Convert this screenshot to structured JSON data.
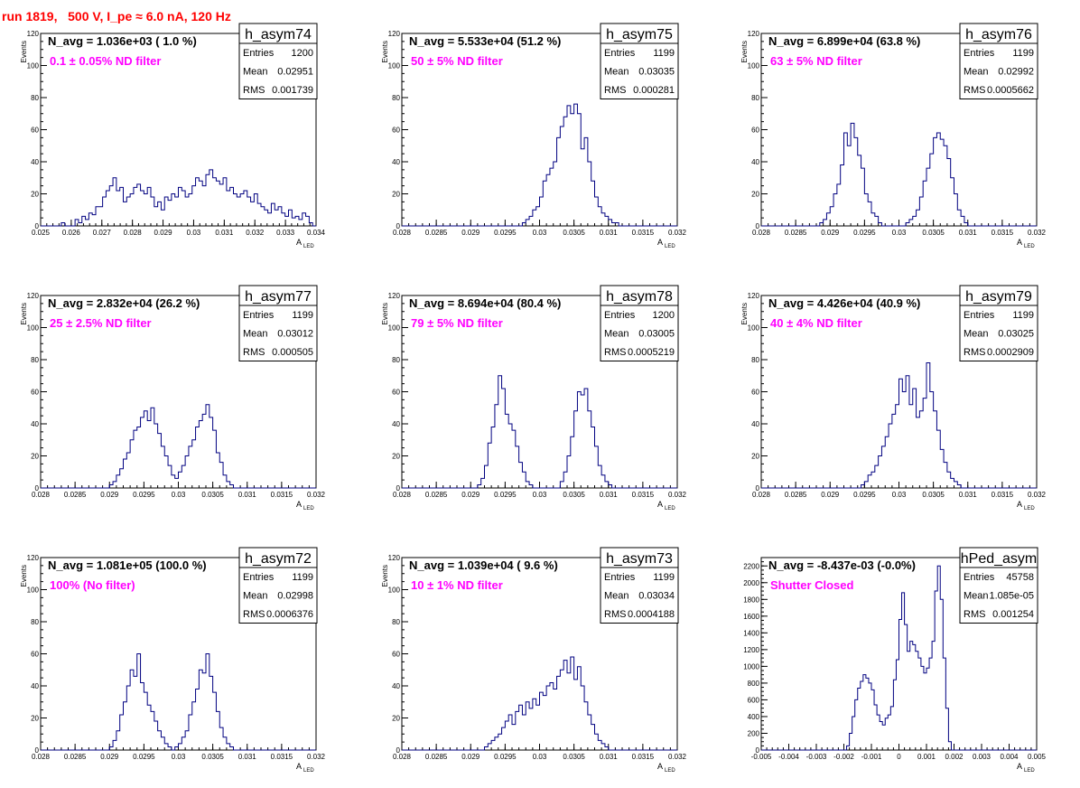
{
  "page": {
    "run_title": "run 1819,   500 V, I_pe ≈ 6.0 nA, 120 Hz"
  },
  "styles": {
    "hist_color": "#000080",
    "label_color": "#ff00ff",
    "title_color": "#ff0000",
    "frame_color": "#000000"
  },
  "chart_data": [
    {
      "type": "histogram",
      "name": "h_asym74",
      "navg": "N_avg = 1.036e+03 ( 1.0 %)",
      "label": "0.1 ± 0.05% ND filter",
      "stats": [
        [
          "Entries",
          "1200"
        ],
        [
          "Mean",
          "0.02951"
        ],
        [
          "RMS",
          "0.001739"
        ]
      ],
      "xlabel": "A",
      "xlabel_sub": "LED",
      "ylabel": "Events",
      "xlim": [
        0.025,
        0.034
      ],
      "ylim": [
        0,
        120
      ],
      "xticks": [
        "0.025",
        "0.026",
        "0.027",
        "0.028",
        "0.029",
        "0.03",
        "0.031",
        "0.032",
        "0.033",
        "0.034"
      ],
      "yticks": [
        "0",
        "20",
        "40",
        "60",
        "80",
        "100",
        "120"
      ],
      "bins": 80,
      "values": [
        0,
        0,
        0,
        0,
        0,
        0,
        2,
        0,
        0,
        0,
        4,
        2,
        6,
        4,
        8,
        7,
        12,
        12,
        18,
        22,
        25,
        30,
        22,
        24,
        15,
        18,
        20,
        24,
        26,
        22,
        20,
        24,
        18,
        12,
        15,
        10,
        18,
        16,
        20,
        18,
        24,
        22,
        18,
        20,
        25,
        30,
        28,
        25,
        32,
        35,
        30,
        28,
        26,
        30,
        22,
        24,
        20,
        18,
        20,
        22,
        18,
        15,
        20,
        14,
        12,
        10,
        8,
        14,
        10,
        12,
        8,
        6,
        10,
        5,
        6,
        4,
        8,
        6,
        2,
        0
      ]
    },
    {
      "type": "histogram",
      "name": "h_asym75",
      "navg": "N_avg = 5.533e+04 (51.2 %)",
      "label": "50 ± 5% ND filter",
      "stats": [
        [
          "Entries",
          "1199"
        ],
        [
          "Mean",
          "0.03035"
        ],
        [
          "RMS",
          "0.000281"
        ]
      ],
      "xlabel": "A",
      "xlabel_sub": "LED",
      "ylabel": "Events",
      "xlim": [
        0.028,
        0.032
      ],
      "ylim": [
        0,
        120
      ],
      "xticks": [
        "0.028",
        "0.0285",
        "0.029",
        "0.0295",
        "0.03",
        "0.0305",
        "0.031",
        "0.0315",
        "0.032"
      ],
      "yticks": [
        "0",
        "20",
        "40",
        "60",
        "80",
        "100",
        "120"
      ],
      "bins": 80,
      "values": [
        0,
        0,
        0,
        0,
        0,
        0,
        0,
        0,
        0,
        0,
        0,
        0,
        0,
        0,
        0,
        0,
        0,
        0,
        0,
        0,
        0,
        0,
        0,
        0,
        0,
        0,
        0,
        0,
        0,
        0,
        0,
        0,
        0,
        0,
        0,
        2,
        4,
        6,
        10,
        12,
        18,
        28,
        32,
        36,
        40,
        55,
        62,
        68,
        75,
        70,
        76,
        70,
        48,
        55,
        40,
        28,
        18,
        12,
        8,
        6,
        4,
        2,
        2,
        0,
        0,
        0,
        0,
        0,
        0,
        0,
        0,
        0,
        0,
        0,
        0,
        0,
        0,
        0,
        0,
        0
      ]
    },
    {
      "type": "histogram",
      "name": "h_asym76",
      "navg": "N_avg = 6.899e+04 (63.8 %)",
      "label": "63 ± 5% ND filter",
      "stats": [
        [
          "Entries",
          "1199"
        ],
        [
          "Mean",
          "0.02992"
        ],
        [
          "RMS",
          "0.0005662"
        ]
      ],
      "xlabel": "A",
      "xlabel_sub": "LED",
      "ylabel": "Events",
      "xlim": [
        0.028,
        0.032
      ],
      "ylim": [
        0,
        120
      ],
      "xticks": [
        "0.028",
        "0.0285",
        "0.029",
        "0.0295",
        "0.03",
        "0.0305",
        "0.031",
        "0.0315",
        "0.032"
      ],
      "yticks": [
        "0",
        "20",
        "40",
        "60",
        "80",
        "100",
        "120"
      ],
      "bins": 80,
      "values": [
        0,
        0,
        0,
        0,
        0,
        0,
        0,
        0,
        0,
        0,
        0,
        0,
        0,
        0,
        0,
        0,
        0,
        2,
        4,
        8,
        12,
        20,
        26,
        38,
        58,
        50,
        64,
        55,
        44,
        36,
        20,
        15,
        8,
        6,
        2,
        0,
        0,
        0,
        0,
        0,
        0,
        0,
        2,
        4,
        6,
        10,
        18,
        28,
        36,
        45,
        55,
        58,
        54,
        50,
        42,
        30,
        20,
        10,
        6,
        2,
        0,
        0,
        0,
        0,
        0,
        0,
        0,
        0,
        0,
        0,
        0,
        0,
        0,
        0,
        0,
        0,
        0,
        0,
        0,
        0
      ]
    },
    {
      "type": "histogram",
      "name": "h_asym77",
      "navg": "N_avg = 2.832e+04 (26.2 %)",
      "label": "25 ± 2.5% ND filter",
      "stats": [
        [
          "Entries",
          "1199"
        ],
        [
          "Mean",
          "0.03012"
        ],
        [
          "RMS",
          "0.000505"
        ]
      ],
      "xlabel": "A",
      "xlabel_sub": "LED",
      "ylabel": "Events",
      "xlim": [
        0.028,
        0.032
      ],
      "ylim": [
        0,
        120
      ],
      "xticks": [
        "0.028",
        "0.0285",
        "0.029",
        "0.0295",
        "0.03",
        "0.0305",
        "0.031",
        "0.0315",
        "0.032"
      ],
      "yticks": [
        "0",
        "20",
        "40",
        "60",
        "80",
        "100",
        "120"
      ],
      "bins": 80,
      "values": [
        0,
        0,
        0,
        0,
        0,
        0,
        0,
        0,
        0,
        0,
        0,
        0,
        0,
        0,
        0,
        0,
        0,
        0,
        0,
        0,
        2,
        4,
        8,
        12,
        18,
        22,
        30,
        36,
        38,
        44,
        48,
        42,
        50,
        40,
        34,
        26,
        20,
        14,
        8,
        6,
        10,
        14,
        20,
        26,
        30,
        38,
        42,
        46,
        52,
        44,
        36,
        22,
        16,
        8,
        4,
        2,
        0,
        0,
        0,
        0,
        0,
        0,
        0,
        0,
        0,
        0,
        0,
        0,
        0,
        0,
        0,
        0,
        0,
        0,
        0,
        0,
        0,
        0,
        0,
        0
      ]
    },
    {
      "type": "histogram",
      "name": "h_asym78",
      "navg": "N_avg = 8.694e+04 (80.4 %)",
      "label": "79 ± 5% ND filter",
      "stats": [
        [
          "Entries",
          "1200"
        ],
        [
          "Mean",
          "0.03005"
        ],
        [
          "RMS",
          "0.0005219"
        ]
      ],
      "xlabel": "A",
      "xlabel_sub": "LED",
      "ylabel": "Events",
      "xlim": [
        0.028,
        0.032
      ],
      "ylim": [
        0,
        120
      ],
      "xticks": [
        "0.028",
        "0.0285",
        "0.029",
        "0.0295",
        "0.03",
        "0.0305",
        "0.031",
        "0.0315",
        "0.032"
      ],
      "yticks": [
        "0",
        "20",
        "40",
        "60",
        "80",
        "100",
        "120"
      ],
      "bins": 80,
      "values": [
        0,
        0,
        0,
        0,
        0,
        0,
        0,
        0,
        0,
        0,
        0,
        0,
        0,
        0,
        0,
        0,
        0,
        0,
        0,
        0,
        0,
        0,
        2,
        6,
        14,
        28,
        38,
        52,
        70,
        62,
        46,
        40,
        36,
        26,
        16,
        10,
        4,
        2,
        0,
        0,
        0,
        0,
        0,
        0,
        0,
        0,
        4,
        10,
        20,
        32,
        48,
        60,
        58,
        62,
        48,
        38,
        26,
        14,
        8,
        4,
        2,
        0,
        0,
        0,
        0,
        0,
        0,
        0,
        0,
        0,
        0,
        0,
        0,
        0,
        0,
        0,
        0,
        0,
        0,
        0
      ]
    },
    {
      "type": "histogram",
      "name": "h_asym79",
      "navg": "N_avg = 4.426e+04 (40.9 %)",
      "label": "40 ± 4% ND filter",
      "stats": [
        [
          "Entries",
          "1199"
        ],
        [
          "Mean",
          "0.03025"
        ],
        [
          "RMS",
          "0.0002909"
        ]
      ],
      "xlabel": "A",
      "xlabel_sub": "LED",
      "ylabel": "Events",
      "xlim": [
        0.028,
        0.032
      ],
      "ylim": [
        0,
        120
      ],
      "xticks": [
        "0.028",
        "0.0285",
        "0.029",
        "0.0295",
        "0.03",
        "0.0305",
        "0.031",
        "0.0315",
        "0.032"
      ],
      "yticks": [
        "0",
        "20",
        "40",
        "60",
        "80",
        "100",
        "120"
      ],
      "bins": 80,
      "values": [
        0,
        0,
        0,
        0,
        0,
        0,
        0,
        0,
        0,
        0,
        0,
        0,
        0,
        0,
        0,
        0,
        0,
        0,
        0,
        0,
        0,
        0,
        0,
        0,
        0,
        0,
        0,
        0,
        0,
        2,
        4,
        8,
        10,
        14,
        20,
        26,
        32,
        40,
        46,
        52,
        68,
        60,
        70,
        52,
        62,
        44,
        48,
        56,
        78,
        60,
        48,
        36,
        24,
        16,
        10,
        6,
        4,
        2,
        0,
        0,
        0,
        0,
        0,
        0,
        0,
        0,
        0,
        0,
        0,
        0,
        0,
        0,
        0,
        0,
        0,
        0,
        0,
        0,
        0,
        0
      ]
    },
    {
      "type": "histogram",
      "name": "h_asym72",
      "navg": "N_avg = 1.081e+05 (100.0 %)",
      "label": "100% (No filter)",
      "stats": [
        [
          "Entries",
          "1199"
        ],
        [
          "Mean",
          "0.02998"
        ],
        [
          "RMS",
          "0.0006376"
        ]
      ],
      "xlabel": "A",
      "xlabel_sub": "LED",
      "ylabel": "Events",
      "xlim": [
        0.028,
        0.032
      ],
      "ylim": [
        0,
        120
      ],
      "xticks": [
        "0.028",
        "0.0285",
        "0.029",
        "0.0295",
        "0.03",
        "0.0305",
        "0.031",
        "0.0315",
        "0.032"
      ],
      "yticks": [
        "0",
        "20",
        "40",
        "60",
        "80",
        "100",
        "120"
      ],
      "bins": 80,
      "values": [
        0,
        0,
        0,
        0,
        0,
        0,
        0,
        0,
        0,
        0,
        0,
        0,
        0,
        0,
        0,
        0,
        0,
        0,
        0,
        0,
        2,
        6,
        12,
        22,
        30,
        40,
        50,
        46,
        60,
        42,
        36,
        28,
        24,
        18,
        12,
        8,
        4,
        2,
        0,
        2,
        4,
        8,
        12,
        22,
        30,
        38,
        50,
        48,
        60,
        46,
        36,
        24,
        14,
        8,
        4,
        2,
        0,
        0,
        0,
        0,
        0,
        0,
        0,
        0,
        0,
        0,
        0,
        0,
        0,
        0,
        0,
        0,
        0,
        0,
        0,
        0,
        0,
        0,
        0,
        0
      ]
    },
    {
      "type": "histogram",
      "name": "h_asym73",
      "navg": "N_avg = 1.039e+04 ( 9.6 %)",
      "label": "10 ± 1% ND filter",
      "stats": [
        [
          "Entries",
          "1199"
        ],
        [
          "Mean",
          "0.03034"
        ],
        [
          "RMS",
          "0.0004188"
        ]
      ],
      "xlabel": "A",
      "xlabel_sub": "LED",
      "ylabel": "Events",
      "xlim": [
        0.028,
        0.032
      ],
      "ylim": [
        0,
        120
      ],
      "xticks": [
        "0.028",
        "0.0285",
        "0.029",
        "0.0295",
        "0.03",
        "0.0305",
        "0.031",
        "0.0315",
        "0.032"
      ],
      "yticks": [
        "0",
        "20",
        "40",
        "60",
        "80",
        "100",
        "120"
      ],
      "bins": 80,
      "values": [
        0,
        0,
        0,
        0,
        0,
        0,
        0,
        0,
        0,
        0,
        0,
        0,
        0,
        0,
        0,
        0,
        0,
        0,
        0,
        0,
        0,
        0,
        0,
        0,
        2,
        4,
        6,
        8,
        10,
        14,
        18,
        22,
        16,
        24,
        28,
        22,
        30,
        26,
        32,
        28,
        36,
        34,
        40,
        42,
        38,
        46,
        50,
        56,
        48,
        58,
        44,
        52,
        40,
        30,
        22,
        16,
        10,
        6,
        4,
        2,
        0,
        0,
        0,
        0,
        0,
        0,
        0,
        0,
        0,
        0,
        0,
        0,
        0,
        0,
        0,
        0,
        0,
        0,
        0,
        0
      ]
    },
    {
      "type": "histogram",
      "name": "hPed_asym",
      "navg": "N_avg = -8.437e-03 (-0.0%)",
      "label": "Shutter Closed",
      "stats": [
        [
          "Entries",
          "45758"
        ],
        [
          "Mean",
          "1.085e-05"
        ],
        [
          "RMS",
          "0.001254"
        ]
      ],
      "xlabel": "A",
      "xlabel_sub": "LED",
      "ylabel": "",
      "xlim": [
        -0.005,
        0.005
      ],
      "ylim": [
        0,
        2300
      ],
      "xticks": [
        "-0.005",
        "-0.004",
        "-0.003",
        "-0.002",
        "-0.001",
        "0",
        "0.001",
        "0.002",
        "0.003",
        "0.004",
        "0.005"
      ],
      "yticks": [
        "0",
        "200",
        "400",
        "600",
        "800",
        "1000",
        "1200",
        "1400",
        "1600",
        "1800",
        "2000",
        "2200"
      ],
      "bins": 100,
      "values": [
        0,
        0,
        0,
        0,
        0,
        0,
        0,
        0,
        0,
        0,
        0,
        0,
        0,
        0,
        0,
        0,
        0,
        0,
        0,
        0,
        0,
        0,
        0,
        0,
        0,
        0,
        0,
        0,
        0,
        0,
        0,
        50,
        200,
        400,
        600,
        740,
        820,
        900,
        860,
        800,
        720,
        540,
        420,
        340,
        300,
        380,
        420,
        520,
        840,
        1080,
        1560,
        1880,
        1500,
        1180,
        1300,
        1260,
        1180,
        1100,
        1000,
        920,
        980,
        1100,
        1300,
        1900,
        2200,
        1800,
        1100,
        500,
        100,
        0,
        0,
        0,
        0,
        0,
        0,
        0,
        0,
        0,
        0,
        0,
        0,
        0,
        0,
        0,
        0,
        0,
        0,
        0,
        0,
        0,
        0,
        0,
        0,
        0,
        0,
        0,
        0,
        0,
        0,
        0
      ]
    }
  ]
}
